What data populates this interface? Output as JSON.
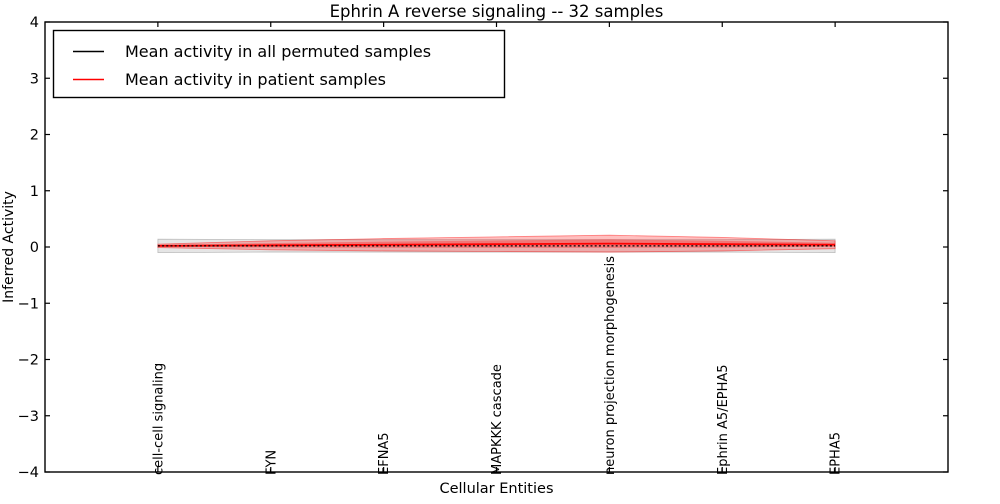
{
  "figure": {
    "background": "#ffffff",
    "accent_red": "#ff0000",
    "frame_color": "#000000"
  },
  "chart_data": {
    "type": "line",
    "title": "Ephrin A  reverse signaling -- 32 samples",
    "xlabel": "Cellular Entities",
    "ylabel": "Inferred Activity",
    "ylim": [
      -4,
      4
    ],
    "xlim": [
      -1,
      7
    ],
    "grid": false,
    "legend_position": "upper left",
    "ytick_values": [
      4,
      3,
      2,
      1,
      0,
      -1,
      -2,
      -3,
      -4
    ],
    "ytick_labels": [
      "4",
      "3",
      "2",
      "1",
      "0",
      "−1",
      "−2",
      "−3",
      "−4"
    ],
    "categories": [
      "cell-cell signaling",
      "FYN",
      "EFNA5",
      "MAPKKK cascade",
      "neuron projection morphogenesis",
      "Ephrin A5/EPHA5",
      "EPHA5"
    ],
    "series": [
      {
        "name": "Mean activity in all permuted samples",
        "color": "#000000",
        "line_style": "dotted",
        "values": [
          0.02,
          0.02,
          0.02,
          0.02,
          0.02,
          0.02,
          0.02
        ],
        "band_halfwidth": [
          0.12,
          0.11,
          0.11,
          0.11,
          0.11,
          0.11,
          0.12
        ],
        "band_color": "#000000",
        "band_alpha": 0.1
      },
      {
        "name": "Mean activity in patient samples",
        "color": "#ff0000",
        "line_style": "solid",
        "values": [
          0.02,
          0.03,
          0.04,
          0.05,
          0.06,
          0.05,
          0.04
        ],
        "band_halfwidth": [
          0.03,
          0.08,
          0.11,
          0.13,
          0.15,
          0.12,
          0.07
        ],
        "band_color": "#ff0000",
        "band_alpha": 0.25
      }
    ]
  }
}
